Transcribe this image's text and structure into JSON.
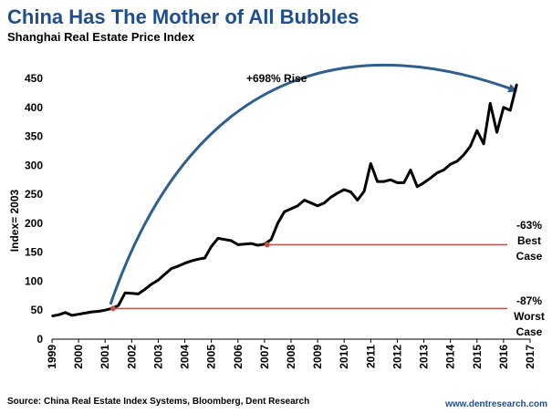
{
  "title": "China Has The Mother of All Bubbles",
  "subtitle": "Shanghai Real Estate Price Index",
  "source": "Source: China Real Estate Index Systems, Bloomberg, Dent Research",
  "website": "www.dentresearch.com",
  "colors": {
    "title": "#1f4e8c",
    "arrow": "#2f5f8f",
    "reference_line": "#c0504d",
    "series": "#000000"
  },
  "chart_data": {
    "type": "line",
    "ylabel": "Index= 2003",
    "xlabel": "",
    "ylim": [
      0,
      450
    ],
    "xlim": [
      1999,
      2017
    ],
    "yticks": [
      0,
      50,
      100,
      150,
      200,
      250,
      300,
      350,
      400,
      450
    ],
    "xticks": [
      "1999",
      "2000",
      "2001",
      "2002",
      "2003",
      "2004",
      "2005",
      "2006",
      "2007",
      "2008",
      "2009",
      "2010",
      "2011",
      "2012",
      "2013",
      "2014",
      "2015",
      "2016",
      "2017"
    ],
    "grid": false,
    "series": [
      {
        "name": "",
        "x": [
          1999.0,
          1999.25,
          1999.5,
          1999.75,
          2000.0,
          2000.25,
          2000.5,
          2000.75,
          2001.0,
          2001.25,
          2001.5,
          2001.75,
          2002.0,
          2002.25,
          2002.5,
          2002.75,
          2003.0,
          2003.25,
          2003.5,
          2003.75,
          2004.0,
          2004.25,
          2004.5,
          2004.75,
          2005.0,
          2005.25,
          2005.5,
          2005.75,
          2006.0,
          2006.25,
          2006.5,
          2006.75,
          2007.0,
          2007.25,
          2007.5,
          2007.75,
          2008.0,
          2008.25,
          2008.5,
          2008.75,
          2009.0,
          2009.25,
          2009.5,
          2009.75,
          2010.0,
          2010.25,
          2010.5,
          2010.75,
          2011.0,
          2011.25,
          2011.5,
          2011.75,
          2012.0,
          2012.25,
          2012.5,
          2012.75,
          2013.0,
          2013.25,
          2013.5,
          2013.75,
          2014.0,
          2014.25,
          2014.5,
          2014.75,
          2015.0,
          2015.25,
          2015.5,
          2015.75,
          2016.0,
          2016.25,
          2016.5
        ],
        "y": [
          40,
          42,
          46,
          41,
          43,
          45,
          47,
          48,
          50,
          53,
          58,
          80,
          79,
          78,
          86,
          95,
          102,
          112,
          122,
          126,
          131,
          135,
          138,
          140,
          160,
          174,
          172,
          170,
          163,
          164,
          165,
          162,
          164,
          172,
          200,
          220,
          225,
          230,
          240,
          235,
          230,
          235,
          245,
          252,
          258,
          254,
          240,
          255,
          303,
          272,
          272,
          275,
          270,
          270,
          292,
          263,
          270,
          278,
          287,
          292,
          302,
          307,
          318,
          333,
          360,
          337,
          407,
          357,
          400,
          395,
          440
        ]
      }
    ],
    "annotations": [
      {
        "text": "+698% Rise"
      },
      {
        "lines": [
          "-63%",
          "Best",
          "Case"
        ],
        "reference_value": 163,
        "start_year": 2007.1
      },
      {
        "lines": [
          "-87%",
          "Worst",
          "Case"
        ],
        "reference_value": 53,
        "start_year": 2001.3
      }
    ]
  }
}
